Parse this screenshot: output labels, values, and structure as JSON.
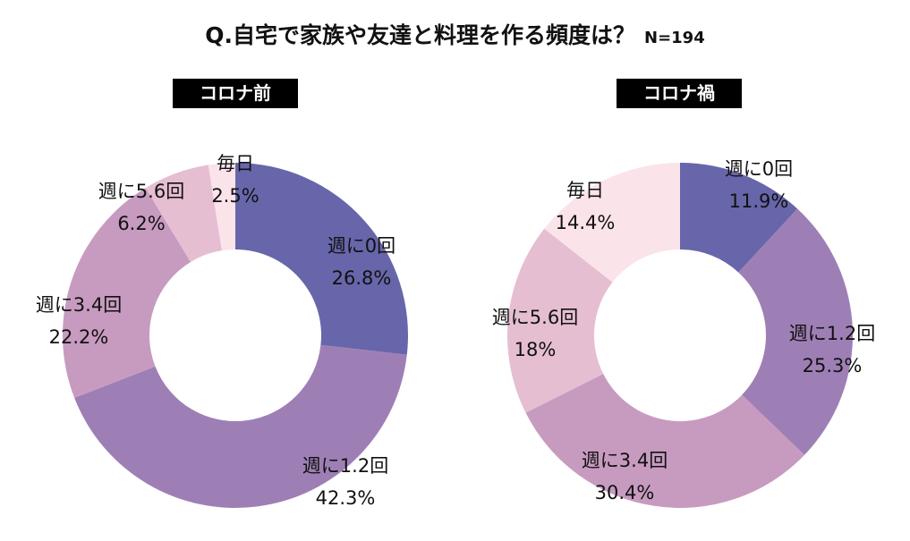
{
  "header": {
    "question": "Q.自宅で家族や友達と料理を作る頻度は？",
    "n": "N=194"
  },
  "chart_data": [
    {
      "type": "pie",
      "title": "コロナ前",
      "categories": [
        "週に0回",
        "週に1.2回",
        "週に3.4回",
        "週に5.6回",
        "毎日"
      ],
      "values": [
        26.8,
        42.3,
        22.2,
        6.2,
        2.5
      ],
      "value_labels": [
        "26.8%",
        "42.3%",
        "22.2%",
        "6.2%",
        "2.5%"
      ],
      "colors": [
        "#6766aa",
        "#9e7fb5",
        "#c79bc0",
        "#e6bed1",
        "#fbe3ea"
      ]
    },
    {
      "type": "pie",
      "title": "コロナ禍",
      "categories": [
        "週に0回",
        "週に1.2回",
        "週に3.4回",
        "週に5.6回",
        "毎日"
      ],
      "values": [
        11.9,
        25.3,
        30.4,
        18,
        14.4
      ],
      "value_labels": [
        "11.9%",
        "25.3%",
        "30.4%",
        "18%",
        "14.4%"
      ],
      "colors": [
        "#6766aa",
        "#9e7fb5",
        "#c79bc0",
        "#e6bed1",
        "#fbe3ea"
      ]
    }
  ]
}
